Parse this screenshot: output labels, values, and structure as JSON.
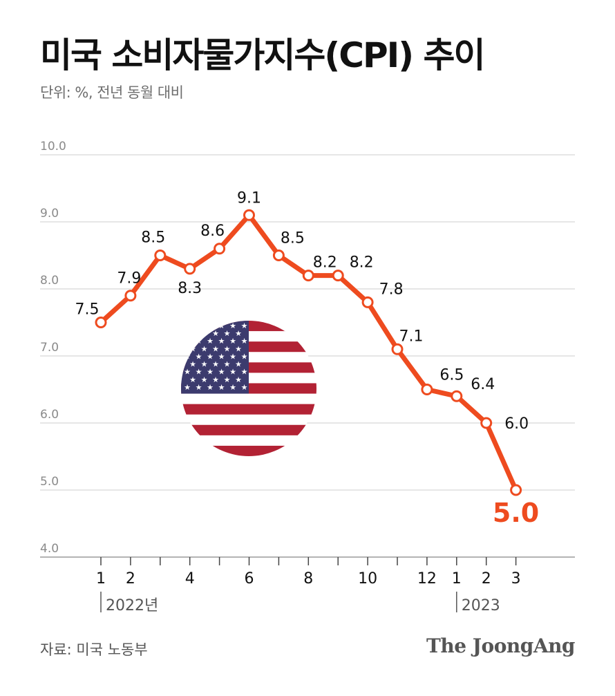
{
  "header": {
    "title": "미국 소비자물가지수(CPI) 추이",
    "subtitle": "단위: %, 전년 동월 대비"
  },
  "footer": {
    "source": "자료: 미국 노동부",
    "brand": "The JoongAng"
  },
  "colors": {
    "line": "#ee4b1f",
    "highlight": "#ee4b1f",
    "grid": "#d8d8d8",
    "axis": "#9a9a9a",
    "flag_red": "#b22234",
    "flag_blue": "#3c3b6e"
  },
  "chart_data": {
    "type": "line",
    "title": "미국 소비자물가지수(CPI) 추이",
    "ylabel": "%",
    "ylim": [
      4.0,
      10.0
    ],
    "yticks": [
      "4.0",
      "5.0",
      "6.0",
      "7.0",
      "8.0",
      "9.0",
      "10.0"
    ],
    "grid": true,
    "x": [
      1,
      2,
      3,
      4,
      5,
      6,
      7,
      8,
      9,
      10,
      11,
      12,
      13,
      14,
      15
    ],
    "values": [
      7.5,
      7.9,
      8.5,
      8.3,
      8.6,
      9.1,
      8.5,
      8.2,
      8.2,
      7.8,
      7.1,
      6.5,
      6.4,
      6.0,
      5.0
    ],
    "value_labels": [
      "7.5",
      "7.9",
      "8.5",
      "8.3",
      "8.6",
      "9.1",
      "8.5",
      "8.2",
      "8.2",
      "7.8",
      "7.1",
      "6.5",
      "6.4",
      "6.0",
      "5.0"
    ],
    "x_tick_labels": [
      "1",
      "2",
      "",
      "4",
      "",
      "6",
      "",
      "8",
      "",
      "10",
      "",
      "12",
      "1",
      "2",
      "3"
    ],
    "year_labels": [
      {
        "label": "2022년",
        "start_index": 0
      },
      {
        "label": "2023",
        "start_index": 12
      }
    ],
    "highlight_index": 14
  }
}
